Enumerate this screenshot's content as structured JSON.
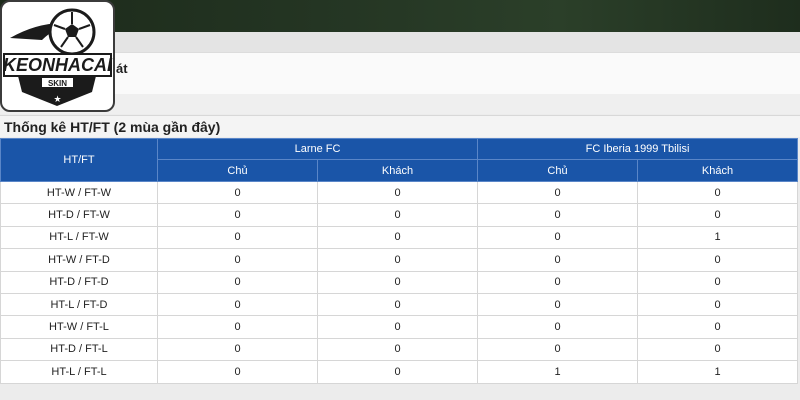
{
  "logo": {
    "text": "KEONHACAI",
    "sub": "SKIN"
  },
  "panel": {
    "fragment": "át"
  },
  "section": {
    "title": "Thống kê HT/FT (2 mùa gần đây)"
  },
  "table": {
    "first_header": "HT/FT",
    "teams": [
      "Larne FC",
      "FC Iberia 1999 Tbilisi"
    ],
    "sub_headers": [
      "Chủ",
      "Khách",
      "Chủ",
      "Khách"
    ],
    "rows": [
      {
        "label": "HT-W / FT-W",
        "values": [
          "0",
          "0",
          "0",
          "0"
        ]
      },
      {
        "label": "HT-D / FT-W",
        "values": [
          "0",
          "0",
          "0",
          "0"
        ]
      },
      {
        "label": "HT-L / FT-W",
        "values": [
          "0",
          "0",
          "0",
          "1"
        ]
      },
      {
        "label": "HT-W / FT-D",
        "values": [
          "0",
          "0",
          "0",
          "0"
        ]
      },
      {
        "label": "HT-D / FT-D",
        "values": [
          "0",
          "0",
          "0",
          "0"
        ]
      },
      {
        "label": "HT-L / FT-D",
        "values": [
          "0",
          "0",
          "0",
          "0"
        ]
      },
      {
        "label": "HT-W / FT-L",
        "values": [
          "0",
          "0",
          "0",
          "0"
        ]
      },
      {
        "label": "HT-D / FT-L",
        "values": [
          "0",
          "0",
          "0",
          "0"
        ]
      },
      {
        "label": "HT-L / FT-L",
        "values": [
          "0",
          "0",
          "1",
          "1"
        ]
      }
    ]
  }
}
